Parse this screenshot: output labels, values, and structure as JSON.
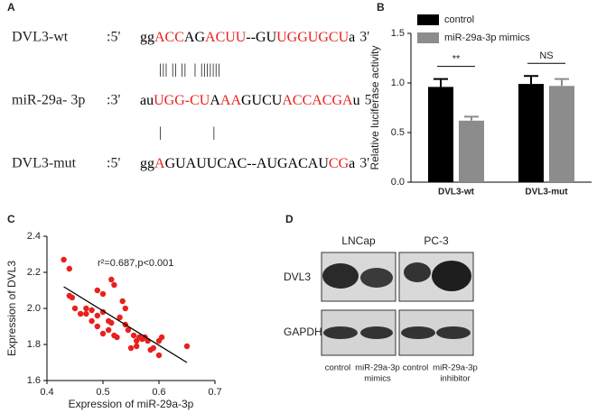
{
  "panels": {
    "a": {
      "label": "A",
      "rows": [
        {
          "name": "DVL3-wt",
          "prime_left": ":5'",
          "prime_right": "3'",
          "segments": [
            {
              "text": "gg",
              "color": "#000000"
            },
            {
              "text": "ACC",
              "color": "#e8211d"
            },
            {
              "text": "AG",
              "color": "#000000"
            },
            {
              "text": "ACUU",
              "color": "#e8211d"
            },
            {
              "text": "--GU",
              "color": "#000000"
            },
            {
              "text": "UGGUGCU",
              "color": "#e8211d"
            },
            {
              "text": "a",
              "color": "#000000"
            }
          ]
        },
        {
          "name": "miR-29a- 3p",
          "prime_left": ":3'",
          "prime_right": "5'",
          "segments": [
            {
              "text": "au",
              "color": "#000000"
            },
            {
              "text": "UGG-CU",
              "color": "#e8211d"
            },
            {
              "text": "A",
              "color": "#000000"
            },
            {
              "text": "AA",
              "color": "#e8211d"
            },
            {
              "text": "GUCU",
              "color": "#000000"
            },
            {
              "text": "ACCACGA",
              "color": "#e8211d"
            },
            {
              "text": "u",
              "color": "#000000"
            }
          ]
        },
        {
          "name": "DVL3-mut",
          "prime_left": ":5'",
          "prime_right": "3'",
          "segments": [
            {
              "text": "gg",
              "color": "#000000"
            },
            {
              "text": "A",
              "color": "#e8211d"
            },
            {
              "text": "GUAUUCAC--AUGACAU",
              "color": "#000000"
            },
            {
              "text": "CG",
              "color": "#e8211d"
            },
            {
              "text": "a",
              "color": "#000000"
            }
          ]
        }
      ],
      "pairing": [
        "||| || ||  | |||||||",
        "|              |"
      ]
    },
    "d": {
      "label": "D",
      "cell_lines": [
        "LNCap",
        "PC-3"
      ],
      "proteins": [
        "DVL3",
        "GAPDH"
      ],
      "lanes": [
        [
          "control"
        ],
        [
          "miR-29a-3p",
          "mimics"
        ],
        [
          "control"
        ],
        [
          "miR-29a-3p",
          "inhibitor"
        ]
      ]
    }
  },
  "chart_data": [
    {
      "type": "bar",
      "panel": "B",
      "ylabel": "Relative luciferase activity",
      "categories": [
        "DVL3-wt",
        "DVL3-mut"
      ],
      "series": [
        {
          "name": "control",
          "color": "#000000",
          "values": [
            0.96,
            0.99
          ],
          "errors": [
            0.08,
            0.08
          ]
        },
        {
          "name": "miR-29a-3p mimics",
          "color": "#8c8c8c",
          "values": [
            0.62,
            0.97
          ],
          "errors": [
            0.04,
            0.07
          ]
        }
      ],
      "ylim": [
        0,
        1.5
      ],
      "yticks": [
        {
          "value": 0,
          "label": "0.0"
        },
        0.5,
        {
          "value": 1,
          "label": "1.0"
        },
        1.5
      ],
      "annotations": [
        "**",
        "NS"
      ],
      "legend": "top-left"
    },
    {
      "type": "scatter",
      "panel": "C",
      "xlabel": "Expression of miR-29a-3p",
      "ylabel": "Expression of DVL3",
      "annotation": "r²=0.687,p<0.001",
      "color": "#e8211d",
      "x": [
        0.43,
        0.44,
        0.44,
        0.445,
        0.45,
        0.46,
        0.47,
        0.47,
        0.48,
        0.48,
        0.49,
        0.49,
        0.49,
        0.5,
        0.5,
        0.5,
        0.51,
        0.51,
        0.515,
        0.515,
        0.52,
        0.52,
        0.525,
        0.53,
        0.535,
        0.54,
        0.54,
        0.545,
        0.55,
        0.555,
        0.56,
        0.56,
        0.565,
        0.57,
        0.575,
        0.58,
        0.585,
        0.59,
        0.6,
        0.6,
        0.605,
        0.65
      ],
      "values": [
        2.27,
        2.22,
        2.07,
        2.06,
        2.0,
        1.97,
        1.97,
        2.0,
        1.99,
        1.93,
        2.1,
        1.96,
        1.9,
        2.08,
        1.98,
        1.86,
        1.93,
        1.88,
        2.16,
        1.92,
        2.13,
        1.85,
        1.84,
        1.95,
        2.04,
        2.0,
        1.91,
        1.88,
        1.78,
        1.85,
        1.82,
        1.79,
        1.84,
        1.83,
        1.84,
        1.82,
        1.77,
        1.78,
        1.82,
        1.74,
        1.84,
        1.79
      ],
      "fit_line": {
        "x": [
          0.43,
          0.65
        ],
        "values": [
          2.12,
          1.7
        ]
      },
      "xlim": [
        0.4,
        0.7
      ],
      "xticks": [
        0.4,
        0.5,
        0.6,
        0.7
      ],
      "ylim": [
        1.6,
        2.4
      ],
      "yticks": [
        1.6,
        1.8,
        {
          "value": 2,
          "label": "2.0"
        },
        2.2,
        2.4
      ]
    }
  ]
}
